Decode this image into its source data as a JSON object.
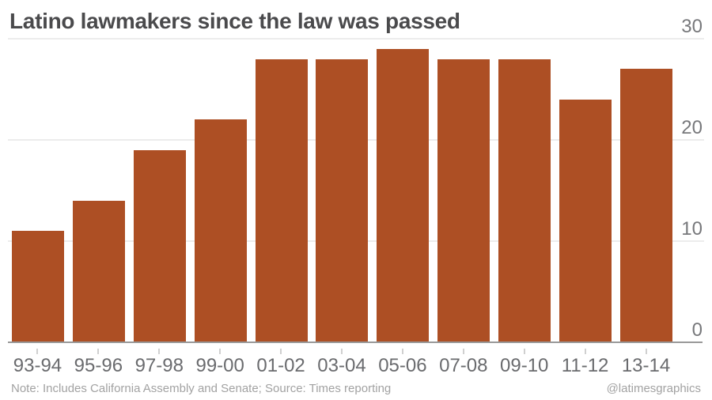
{
  "title": "Latino lawmakers since the law was passed",
  "chart_data": {
    "type": "bar",
    "categories": [
      "93-94",
      "95-96",
      "97-98",
      "99-00",
      "01-02",
      "03-04",
      "05-06",
      "07-08",
      "09-10",
      "11-12",
      "13-14"
    ],
    "values": [
      11,
      14,
      19,
      22,
      28,
      28,
      29,
      28,
      28,
      24,
      27
    ],
    "title": "Latino lawmakers since the law was passed",
    "xlabel": "",
    "ylabel": "",
    "ylim": [
      0,
      30
    ],
    "yticks": [
      0,
      10,
      20,
      30
    ],
    "ytick_side": "right",
    "grid": true,
    "legend": "none",
    "bar_color": "#ad4f24"
  },
  "footer": {
    "note": "Note: Includes California Assembly and Senate; Source: Times reporting",
    "credit": "@latimesgraphics"
  },
  "colors": {
    "bar": "#ad4f24",
    "title": "#4a4a4c",
    "axis_label": "#6a6b6e",
    "ytick_label": "#77787b",
    "gridline": "#ececec",
    "baseline": "#999999",
    "tick": "#d0d0d0",
    "note": "#a2a2a2",
    "background": "#ffffff"
  }
}
